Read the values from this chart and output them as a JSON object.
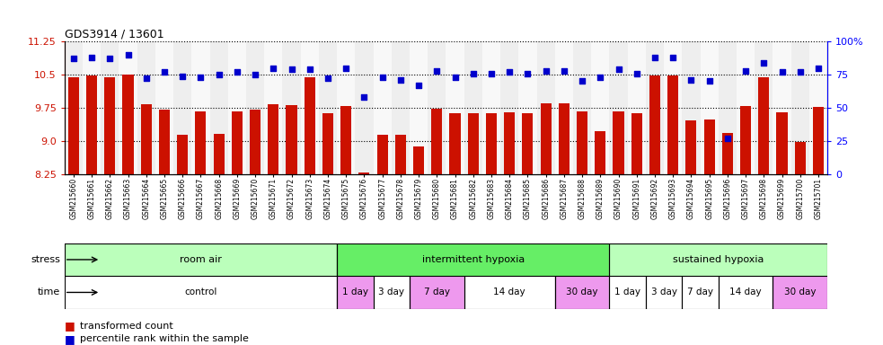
{
  "title": "GDS3914 / 13601",
  "sample_ids": [
    "GSM215660",
    "GSM215661",
    "GSM215662",
    "GSM215663",
    "GSM215664",
    "GSM215665",
    "GSM215666",
    "GSM215667",
    "GSM215668",
    "GSM215669",
    "GSM215670",
    "GSM215671",
    "GSM215672",
    "GSM215673",
    "GSM215674",
    "GSM215675",
    "GSM215676",
    "GSM215677",
    "GSM215678",
    "GSM215679",
    "GSM215680",
    "GSM215681",
    "GSM215682",
    "GSM215683",
    "GSM215684",
    "GSM215685",
    "GSM215686",
    "GSM215687",
    "GSM215688",
    "GSM215689",
    "GSM215690",
    "GSM215691",
    "GSM215692",
    "GSM215693",
    "GSM215694",
    "GSM215695",
    "GSM215696",
    "GSM215697",
    "GSM215698",
    "GSM215699",
    "GSM215700",
    "GSM215701"
  ],
  "bar_values": [
    10.45,
    10.49,
    10.45,
    10.51,
    9.84,
    9.7,
    9.15,
    9.67,
    9.17,
    9.67,
    9.7,
    9.84,
    9.82,
    10.43,
    9.62,
    9.79,
    8.28,
    9.15,
    9.14,
    8.87,
    9.73,
    9.63,
    9.62,
    9.62,
    9.65,
    9.62,
    9.85,
    9.85,
    9.66,
    9.22,
    9.66,
    9.62,
    10.48,
    10.48,
    9.47,
    9.48,
    9.18,
    9.8,
    10.43,
    9.65,
    8.98,
    9.78
  ],
  "percentile_values": [
    87,
    88,
    87,
    90,
    72,
    77,
    74,
    73,
    75,
    77,
    75,
    80,
    79,
    79,
    72,
    80,
    58,
    73,
    71,
    67,
    78,
    73,
    76,
    76,
    77,
    76,
    78,
    78,
    70,
    73,
    79,
    76,
    88,
    88,
    71,
    70,
    27,
    78,
    84,
    77,
    77,
    80
  ],
  "ylim_left": [
    8.25,
    11.25
  ],
  "ylim_right": [
    0,
    100
  ],
  "yticks_left": [
    8.25,
    9.0,
    9.75,
    10.5,
    11.25
  ],
  "yticks_right": [
    0,
    25,
    50,
    75,
    100
  ],
  "bar_color": "#cc1100",
  "dot_color": "#0000cc",
  "background_color": "#ffffff",
  "stress_groups": [
    {
      "label": "room air",
      "start": 0,
      "end": 15,
      "color": "#bbffbb"
    },
    {
      "label": "intermittent hypoxia",
      "start": 15,
      "end": 30,
      "color": "#66ee66"
    },
    {
      "label": "sustained hypoxia",
      "start": 30,
      "end": 42,
      "color": "#bbffbb"
    }
  ],
  "time_groups": [
    {
      "label": "control",
      "start": 0,
      "end": 15,
      "color": "#ffffff"
    },
    {
      "label": "1 day",
      "start": 15,
      "end": 17,
      "color": "#ee99ee"
    },
    {
      "label": "3 day",
      "start": 17,
      "end": 19,
      "color": "#ffffff"
    },
    {
      "label": "7 day",
      "start": 19,
      "end": 22,
      "color": "#ee99ee"
    },
    {
      "label": "14 day",
      "start": 22,
      "end": 27,
      "color": "#ffffff"
    },
    {
      "label": "30 day",
      "start": 27,
      "end": 30,
      "color": "#ee99ee"
    },
    {
      "label": "1 day",
      "start": 30,
      "end": 32,
      "color": "#ffffff"
    },
    {
      "label": "3 day",
      "start": 32,
      "end": 34,
      "color": "#ffffff"
    },
    {
      "label": "7 day",
      "start": 34,
      "end": 36,
      "color": "#ffffff"
    },
    {
      "label": "14 day",
      "start": 36,
      "end": 39,
      "color": "#ffffff"
    },
    {
      "label": "30 day",
      "start": 39,
      "end": 42,
      "color": "#ee99ee"
    }
  ],
  "legend_bar_label": "transformed count",
  "legend_dot_label": "percentile rank within the sample",
  "stress_label": "stress",
  "time_label": "time"
}
